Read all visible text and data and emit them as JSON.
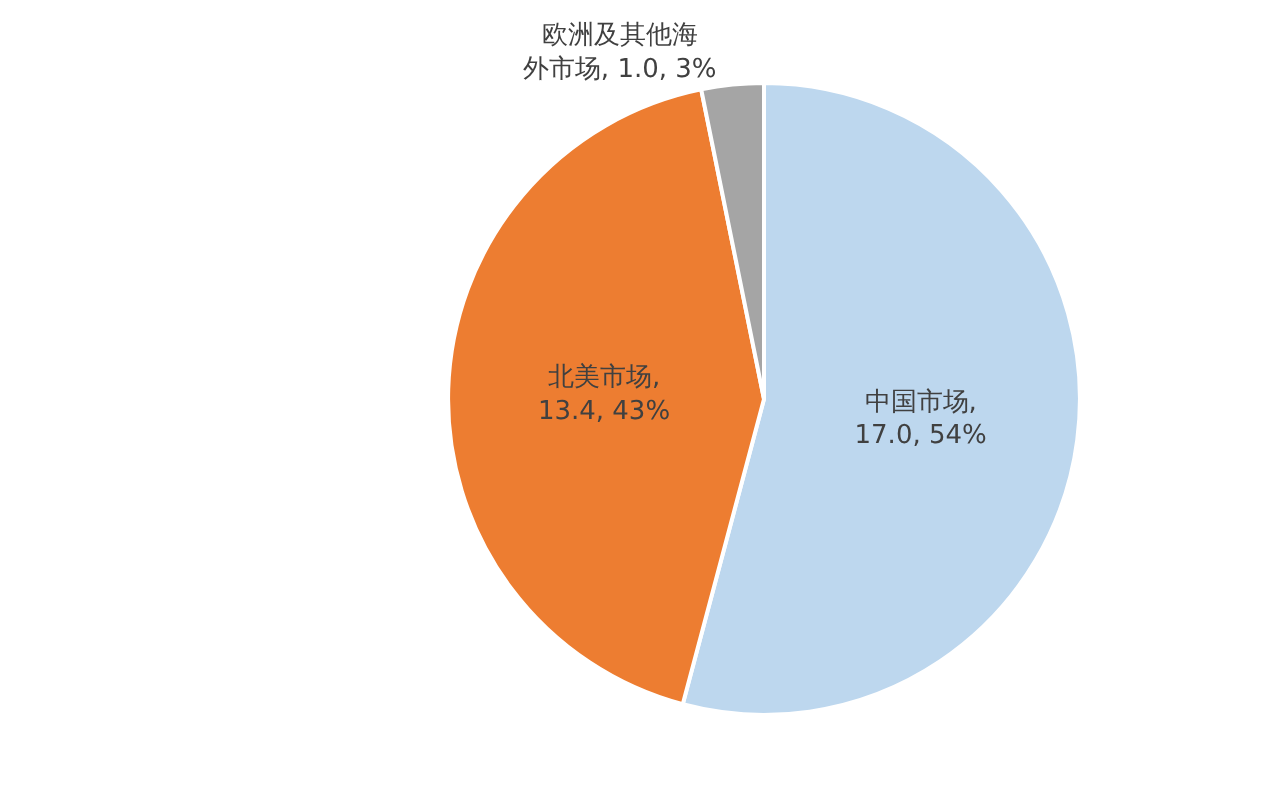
{
  "chart_data": {
    "type": "pie",
    "categories": [
      "中国市场",
      "北美市场",
      "欧洲及其他海外市场"
    ],
    "values": [
      17.0,
      13.4,
      1.0
    ],
    "colors": [
      "#bdd7ee",
      "#ed7d31",
      "#a5a5a5"
    ],
    "value_labels": [
      ", 17.0, 54%",
      ", 13.4, 43%",
      ", 1.0, 3%"
    ],
    "legend": false
  }
}
